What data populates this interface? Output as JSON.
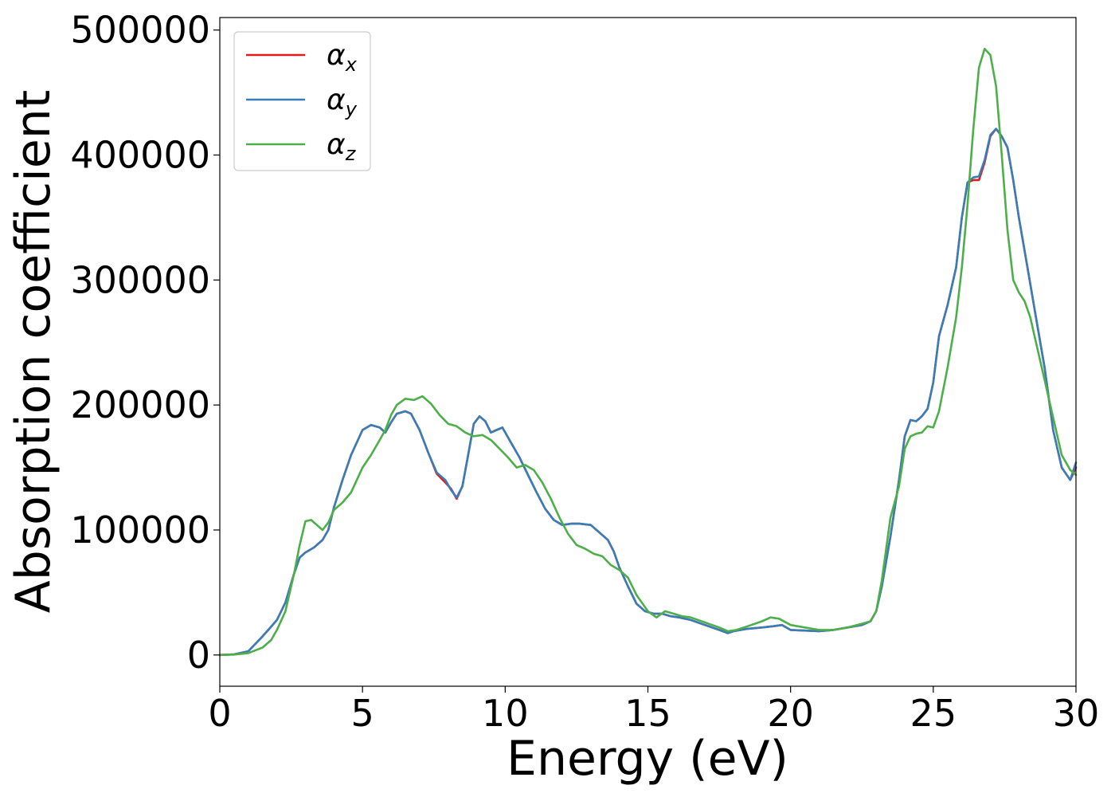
{
  "chart_data": {
    "type": "line",
    "xlabel": "Energy (eV)",
    "ylabel": "Absorption coefficient",
    "xlim": [
      0,
      30
    ],
    "ylim": [
      -25000,
      510000
    ],
    "xticks": [
      0,
      5,
      10,
      15,
      20,
      25,
      30
    ],
    "yticks": [
      0,
      100000,
      200000,
      300000,
      400000,
      500000
    ],
    "grid": false,
    "legend_position": "top-left",
    "series": [
      {
        "name": "αx",
        "symbol": "α",
        "subscript": "x",
        "color": "#e41a1c",
        "x": [
          0,
          0.5,
          1.0,
          1.5,
          1.7,
          2.0,
          2.3,
          2.6,
          2.8,
          3.0,
          3.3,
          3.6,
          3.8,
          4.0,
          4.3,
          4.6,
          5.0,
          5.3,
          5.6,
          5.8,
          6.0,
          6.2,
          6.5,
          6.7,
          7.0,
          7.3,
          7.6,
          7.9,
          8.1,
          8.3,
          8.5,
          8.7,
          8.9,
          9.1,
          9.3,
          9.5,
          9.7,
          9.9,
          10.2,
          10.5,
          10.8,
          11.1,
          11.4,
          11.7,
          12.0,
          12.3,
          12.6,
          13.0,
          13.3,
          13.6,
          13.8,
          14.0,
          14.3,
          14.6,
          14.9,
          15.2,
          15.5,
          15.8,
          16.1,
          16.5,
          17.0,
          17.5,
          17.8,
          18.0,
          18.5,
          19.0,
          19.4,
          19.7,
          20.0,
          20.5,
          21.0,
          21.5,
          22.0,
          22.5,
          22.8,
          23.0,
          23.2,
          23.5,
          23.8,
          24.0,
          24.2,
          24.4,
          24.6,
          24.8,
          25.0,
          25.2,
          25.5,
          25.8,
          26.0,
          26.2,
          26.4,
          26.6,
          26.8,
          27.0,
          27.2,
          27.4,
          27.6,
          27.8,
          28.0,
          28.3,
          28.6,
          28.9,
          29.2,
          29.5,
          29.8,
          30.0
        ],
        "values": [
          0,
          500,
          3000,
          15000,
          20000,
          28000,
          42000,
          65000,
          78000,
          82000,
          86000,
          92000,
          100000,
          118000,
          140000,
          160000,
          180000,
          184000,
          182000,
          178000,
          186000,
          193000,
          195000,
          193000,
          180000,
          162000,
          145000,
          138000,
          133000,
          125000,
          135000,
          160000,
          185000,
          191000,
          187000,
          178000,
          180000,
          182000,
          170000,
          158000,
          144000,
          130000,
          117000,
          108000,
          104000,
          105000,
          105000,
          104000,
          98000,
          92000,
          83000,
          70000,
          55000,
          41000,
          35000,
          33000,
          33000,
          31000,
          30000,
          28000,
          24000,
          20000,
          17500,
          19000,
          21000,
          22000,
          23000,
          24000,
          20000,
          19500,
          19000,
          20000,
          22000,
          24000,
          27000,
          35000,
          55000,
          95000,
          140000,
          175000,
          188000,
          187000,
          191000,
          197000,
          218000,
          255000,
          280000,
          310000,
          350000,
          378000,
          380000,
          380000,
          394000,
          415000,
          421000,
          415000,
          406000,
          380000,
          350000,
          310000,
          270000,
          230000,
          180000,
          150000,
          140000,
          150000
        ]
      },
      {
        "name": "αy",
        "symbol": "α",
        "subscript": "y",
        "color": "#377eb8",
        "x": [
          0,
          0.5,
          1.0,
          1.5,
          1.7,
          2.0,
          2.3,
          2.6,
          2.8,
          3.0,
          3.3,
          3.6,
          3.8,
          4.0,
          4.3,
          4.6,
          5.0,
          5.3,
          5.6,
          5.8,
          6.0,
          6.2,
          6.5,
          6.7,
          7.0,
          7.3,
          7.6,
          7.9,
          8.1,
          8.3,
          8.5,
          8.7,
          8.9,
          9.1,
          9.3,
          9.5,
          9.7,
          9.9,
          10.2,
          10.5,
          10.8,
          11.1,
          11.4,
          11.7,
          12.0,
          12.3,
          12.6,
          13.0,
          13.3,
          13.6,
          13.8,
          14.0,
          14.3,
          14.6,
          14.9,
          15.2,
          15.5,
          15.8,
          16.1,
          16.5,
          17.0,
          17.5,
          17.8,
          18.0,
          18.5,
          19.0,
          19.4,
          19.7,
          20.0,
          20.5,
          21.0,
          21.5,
          22.0,
          22.5,
          22.8,
          23.0,
          23.2,
          23.5,
          23.8,
          24.0,
          24.2,
          24.4,
          24.6,
          24.8,
          25.0,
          25.2,
          25.5,
          25.8,
          26.0,
          26.2,
          26.4,
          26.6,
          26.8,
          27.0,
          27.2,
          27.4,
          27.6,
          27.8,
          28.0,
          28.3,
          28.6,
          28.9,
          29.2,
          29.5,
          29.8,
          30.0
        ],
        "values": [
          0,
          500,
          3000,
          15000,
          20000,
          28000,
          42000,
          65000,
          78000,
          82000,
          86000,
          92000,
          100000,
          118000,
          140000,
          160000,
          180000,
          184000,
          182000,
          178000,
          186000,
          193000,
          195000,
          193000,
          180000,
          162000,
          146000,
          140000,
          132000,
          126000,
          135000,
          160000,
          185000,
          191000,
          187000,
          178000,
          180000,
          182000,
          170000,
          158000,
          144000,
          130000,
          117000,
          108000,
          104000,
          105000,
          105000,
          104000,
          98000,
          92000,
          83000,
          70000,
          55000,
          41000,
          35000,
          33000,
          33000,
          31000,
          30000,
          28000,
          24000,
          20000,
          17500,
          19000,
          21000,
          22000,
          23000,
          24000,
          20000,
          19500,
          19000,
          20000,
          22000,
          24000,
          27000,
          35000,
          55000,
          95000,
          140000,
          175000,
          188000,
          187000,
          191000,
          197000,
          218000,
          255000,
          280000,
          310000,
          350000,
          378000,
          382000,
          383000,
          396000,
          416000,
          421000,
          415000,
          406000,
          380000,
          350000,
          310000,
          270000,
          230000,
          180000,
          150000,
          140000,
          154000
        ]
      },
      {
        "name": "αz",
        "symbol": "α",
        "subscript": "z",
        "color": "#4daf4a",
        "x": [
          0,
          0.5,
          1.0,
          1.5,
          1.8,
          2.0,
          2.3,
          2.6,
          2.8,
          3.0,
          3.2,
          3.4,
          3.6,
          3.8,
          4.0,
          4.3,
          4.6,
          5.0,
          5.3,
          5.6,
          5.8,
          6.0,
          6.2,
          6.5,
          6.8,
          7.1,
          7.4,
          7.7,
          8.0,
          8.3,
          8.6,
          8.9,
          9.2,
          9.5,
          9.8,
          10.1,
          10.4,
          10.7,
          11.0,
          11.3,
          11.6,
          11.9,
          12.2,
          12.5,
          12.8,
          13.1,
          13.4,
          13.7,
          14.0,
          14.3,
          14.6,
          15.0,
          15.3,
          15.6,
          15.9,
          16.2,
          16.5,
          17.0,
          17.5,
          17.8,
          18.1,
          18.5,
          19.0,
          19.3,
          19.6,
          20.0,
          20.5,
          21.0,
          21.5,
          22.0,
          22.5,
          22.8,
          23.0,
          23.2,
          23.5,
          23.8,
          24.0,
          24.2,
          24.4,
          24.6,
          24.8,
          25.0,
          25.2,
          25.5,
          25.8,
          26.0,
          26.2,
          26.4,
          26.6,
          26.8,
          27.0,
          27.2,
          27.4,
          27.6,
          27.8,
          28.0,
          28.2,
          28.4,
          28.6,
          28.9,
          29.2,
          29.5,
          29.8,
          30.0
        ],
        "values": [
          0,
          300,
          1500,
          6000,
          12000,
          20000,
          35000,
          65000,
          88000,
          107000,
          108000,
          104000,
          100000,
          106000,
          116000,
          122000,
          130000,
          150000,
          160000,
          172000,
          180000,
          192000,
          200000,
          205000,
          204000,
          207000,
          201000,
          192000,
          185000,
          183000,
          178000,
          175000,
          176000,
          172000,
          165000,
          158000,
          150000,
          152000,
          148000,
          138000,
          125000,
          110000,
          97000,
          88000,
          85000,
          81000,
          79000,
          72000,
          68000,
          62000,
          48000,
          35000,
          30000,
          35000,
          33000,
          31000,
          30000,
          26000,
          22000,
          19000,
          20000,
          23000,
          27000,
          30000,
          29000,
          24000,
          22000,
          20000,
          20000,
          22000,
          25000,
          27000,
          35000,
          60000,
          110000,
          135000,
          165000,
          175000,
          177000,
          178000,
          183000,
          182000,
          195000,
          230000,
          270000,
          310000,
          360000,
          420000,
          470000,
          485000,
          480000,
          455000,
          400000,
          340000,
          300000,
          290000,
          283000,
          270000,
          250000,
          220000,
          190000,
          160000,
          148000,
          144000
        ]
      }
    ]
  }
}
